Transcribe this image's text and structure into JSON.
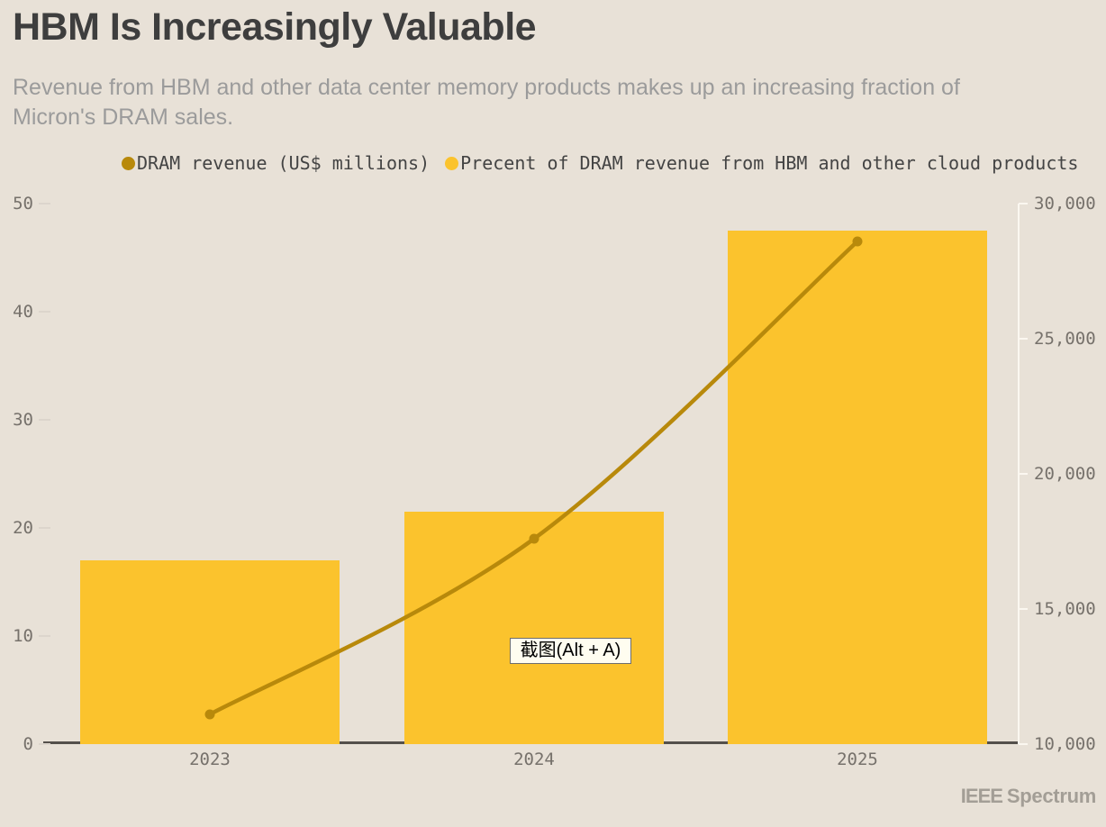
{
  "header": {
    "title": "HBM Is Increasingly Valuable",
    "subtitle": "Revenue from HBM and other data center memory products makes up an increasing fraction of Micron's DRAM sales."
  },
  "legend": {
    "items": [
      {
        "label": "DRAM revenue (US$ millions)",
        "color": "#B8890B"
      },
      {
        "label": "Precent of DRAM revenue from HBM and other cloud products",
        "color": "#FBC32D"
      }
    ]
  },
  "chart_data": {
    "type": "bar+line",
    "title": "HBM Is Increasingly Valuable",
    "subtitle": "Revenue from HBM and other data center memory products makes up an increasing fraction of Micron's DRAM sales.",
    "categories": [
      "2023",
      "2024",
      "2025"
    ],
    "series": [
      {
        "name": "DRAM revenue (US$ millions)",
        "type": "line",
        "axis": "right",
        "color": "#B8890B",
        "values": [
          11100,
          17600,
          28600
        ]
      },
      {
        "name": "Precent of DRAM revenue from HBM and other cloud products",
        "type": "bar",
        "axis": "left",
        "color": "#FBC32D",
        "values": [
          17,
          21.5,
          47.5
        ]
      }
    ],
    "left_axis": {
      "label": "",
      "range": [
        0,
        50
      ],
      "ticks": [
        0,
        10,
        20,
        30,
        40,
        50
      ]
    },
    "right_axis": {
      "label": "",
      "range": [
        10000,
        30000
      ],
      "ticks": [
        10000,
        15000,
        20000,
        25000,
        30000
      ],
      "tick_labels": [
        "10,000",
        "15,000",
        "20,000",
        "25,000",
        "30,000"
      ]
    },
    "grid": false,
    "legend_position": "top"
  },
  "overlay": {
    "screenshot_hint": "截图(Alt + A)"
  },
  "footer": {
    "brand_ieee": "IEEE",
    "brand_spectrum": "Spectrum"
  },
  "colors": {
    "background": "#E8E1D7",
    "title": "#3E3E3E",
    "subtitle": "#9B9B9B",
    "tick_label": "#76716B",
    "axis_line": "#54504B",
    "right_axis_line": "#FBF7F0",
    "left_tick_dash": "#DCD5CC",
    "bar": "#FBC32D",
    "line": "#B8890B",
    "tooltip_bg": "#FFFDF0",
    "brand": "#A39E96"
  }
}
